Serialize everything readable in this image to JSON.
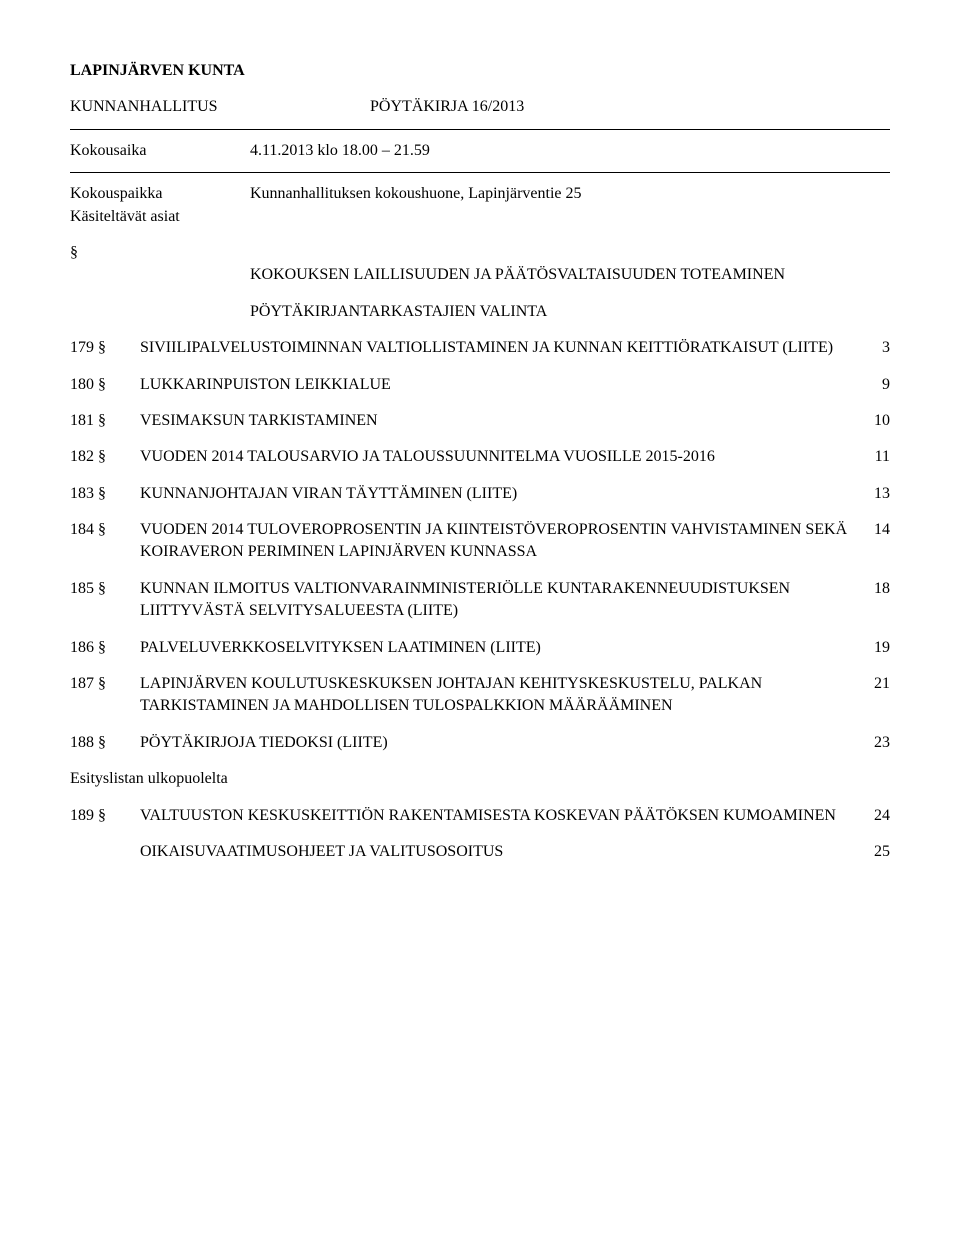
{
  "header": {
    "org": "LAPINJÄRVEN KUNTA",
    "body": "KUNNANHALLITUS",
    "doc_title": "PÖYTÄKIRJA 16/2013"
  },
  "meeting": {
    "time_label": "Kokousaika",
    "time_value": "4.11.2013 klo 18.00 – 21.59",
    "place_label": "Kokouspaikka",
    "place_value": "Kunnanhallituksen kokoushuone, Lapinjärventie 25",
    "items_label": "Käsiteltävät asiat",
    "section_mark": "§"
  },
  "pre_items": [
    "KOKOUKSEN LAILLISUUDEN JA PÄÄTÖSVALTAISUUDEN TOTEAMINEN",
    "PÖYTÄKIRJANTARKASTAJIEN VALINTA"
  ],
  "agenda": [
    {
      "num": "179 §",
      "text": "SIVIILIPALVELUSTOIMINNAN VALTIOLLISTAMINEN JA KUNNAN KEITTIÖRATKAISUT (LIITE)",
      "page": "3"
    },
    {
      "num": "180 §",
      "text": "LUKKARINPUISTON LEIKKIALUE",
      "page": "9"
    },
    {
      "num": "181 §",
      "text": "VESIMAKSUN TARKISTAMINEN",
      "page": "10"
    },
    {
      "num": "182 §",
      "text": "VUODEN 2014 TALOUSARVIO JA TALOUSSUUNNITELMA VUOSILLE 2015-2016",
      "page": "11"
    },
    {
      "num": "183 §",
      "text": "KUNNANJOHTAJAN VIRAN TÄYTTÄMINEN (LIITE)",
      "page": "13"
    },
    {
      "num": "184 §",
      "text": "VUODEN 2014 TULOVEROPROSENTIN JA KIINTEISTÖVEROPROSENTIN VAHVISTAMINEN SEKÄ KOIRAVERON PERIMINEN LAPINJÄRVEN KUNNASSA",
      "page": "14"
    },
    {
      "num": "185 §",
      "text": "KUNNAN ILMOITUS VALTIONVARAINMINISTERIÖLLE KUNTARAKENNEUUDISTUKSEN LIITTYVÄSTÄ SELVITYSALUEESTA (LIITE)",
      "page": "18"
    },
    {
      "num": "186 §",
      "text": "PALVELUVERKKOSELVITYKSEN LAATIMINEN (LIITE)",
      "page": "19"
    },
    {
      "num": "187 §",
      "text": "LAPINJÄRVEN KOULUTUSKESKUKSEN JOHTAJAN KEHITYSKESKUSTELU, PALKAN TARKISTAMINEN JA MAHDOLLISEN TULOSPALKKION MÄÄRÄÄMINEN",
      "page": "21"
    },
    {
      "num": "188 §",
      "text": "PÖYTÄKIRJOJA TIEDOKSI (LIITE)",
      "page": "23"
    }
  ],
  "extra_label": "Esityslistan ulkopuolelta",
  "agenda_extra": [
    {
      "num": "189 §",
      "text": "VALTUUSTON KESKUSKEITTIÖN RAKENTAMISESTA KOSKEVAN PÄÄTÖKSEN KUMOAMINEN",
      "page": "24"
    }
  ],
  "footer_items": [
    {
      "num": "",
      "text": "OIKAISUVAATIMUSOHJEET JA VALITUSOSOITUS",
      "page": "25"
    }
  ]
}
